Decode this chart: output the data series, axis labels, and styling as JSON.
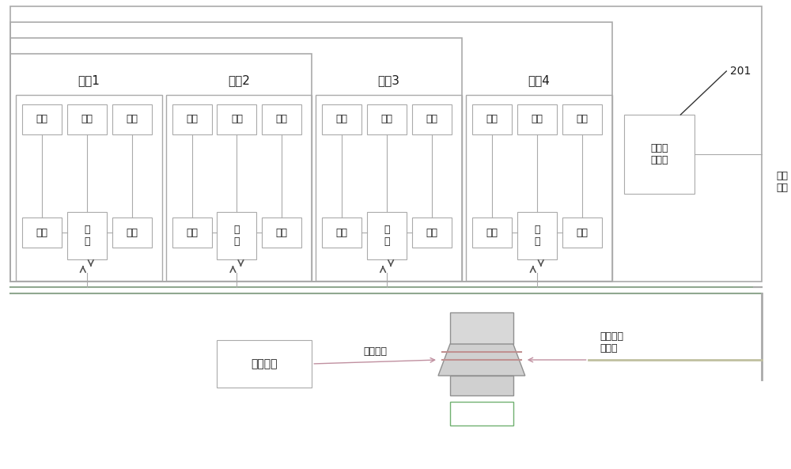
{
  "bg_color": "#ffffff",
  "lc": "#aaaaaa",
  "tc": "#1a1a1a",
  "label_probe": "探头",
  "label_detect": "检波",
  "label_sample": "采\n样",
  "label_switch": "单刀四\n掷开关",
  "label_antenna": "待测天线",
  "label_test_cable": "测试电缆",
  "label_signal_cable": "信号及电\n源线缆",
  "label_rf_cable": "射频\n电缆",
  "label_201": "201",
  "section_labels": [
    "部分1",
    "部分2",
    "部分3",
    "部分4"
  ],
  "nested_box_colors": [
    "#aaaaaa",
    "#aaaaaa",
    "#aaaaaa",
    "#aaaaaa"
  ],
  "bus_color_top": "#90b090",
  "bus_color_bot": "#aaaaaa",
  "arrow_color": "#555555",
  "pink_line": "#c090a0",
  "signal_line": "#c0c0c0"
}
